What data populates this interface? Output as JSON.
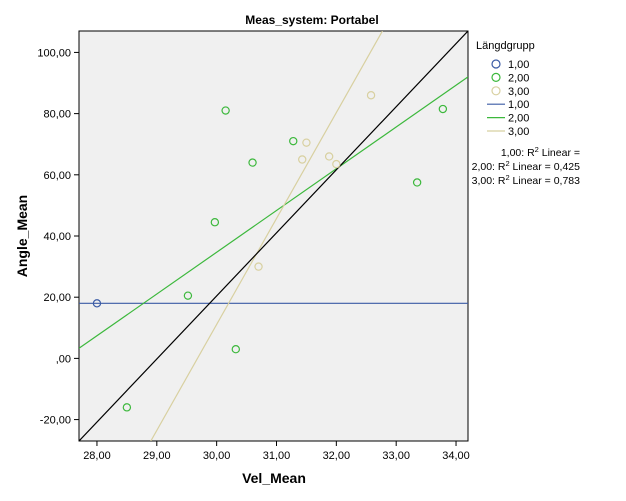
{
  "chart_data": {
    "type": "scatter",
    "title": "Meas_system: Portabel",
    "xlabel": "Vel_Mean",
    "ylabel": "Angle_Mean",
    "xlim": [
      27.7,
      34.2
    ],
    "ylim": [
      -27,
      107
    ],
    "x_ticks": [
      "28,00",
      "29,00",
      "30,00",
      "31,00",
      "32,00",
      "33,00",
      "34,00"
    ],
    "x_tick_values": [
      28,
      29,
      30,
      31,
      32,
      33,
      34
    ],
    "y_ticks": [
      "-20,00",
      ",00",
      "20,00",
      "40,00",
      "60,00",
      "80,00",
      "100,00"
    ],
    "y_tick_values": [
      -20,
      0,
      20,
      40,
      60,
      80,
      100
    ],
    "grid": false,
    "background": "#f0f0f0",
    "legend": {
      "title": "Längdgrupp",
      "position": "right",
      "entries": [
        {
          "label": "1,00",
          "kind": "marker",
          "color": "#3b5ba5"
        },
        {
          "label": "2,00",
          "kind": "marker",
          "color": "#3cb83c"
        },
        {
          "label": "3,00",
          "kind": "marker",
          "color": "#d8d0a0"
        },
        {
          "label": "1,00",
          "kind": "line",
          "color": "#3b5ba5"
        },
        {
          "label": "2,00",
          "kind": "line",
          "color": "#3cb83c"
        },
        {
          "label": "3,00",
          "kind": "line",
          "color": "#d8d0a0"
        }
      ]
    },
    "r2_annotations": [
      {
        "prefix": "1,00: R",
        "suffix": " Linear =",
        "value": ""
      },
      {
        "prefix": "2,00: R",
        "suffix": " Linear = 0,425",
        "value": "0,425"
      },
      {
        "prefix": "3,00: R",
        "suffix": " Linear = 0,783",
        "value": "0,783"
      }
    ],
    "series": [
      {
        "name": "1,00",
        "color": "#3b5ba5",
        "points": [
          {
            "x": 28.0,
            "y": 18.0
          }
        ],
        "fit_line": {
          "x": [
            27.7,
            34.2
          ],
          "y": [
            18.0,
            18.0
          ]
        }
      },
      {
        "name": "2,00",
        "color": "#3cb83c",
        "points": [
          {
            "x": 28.5,
            "y": -16.0
          },
          {
            "x": 29.52,
            "y": 20.5
          },
          {
            "x": 29.97,
            "y": 44.5
          },
          {
            "x": 30.15,
            "y": 81.0
          },
          {
            "x": 30.32,
            "y": 3.0
          },
          {
            "x": 30.6,
            "y": 64.0
          },
          {
            "x": 31.28,
            "y": 71.0
          },
          {
            "x": 33.35,
            "y": 57.5
          },
          {
            "x": 33.78,
            "y": 81.5
          }
        ],
        "fit_line": {
          "x": [
            27.7,
            34.2
          ],
          "y": [
            3.3,
            92.0
          ]
        }
      },
      {
        "name": "3,00",
        "color": "#d8d0a0",
        "points": [
          {
            "x": 30.7,
            "y": 30.0
          },
          {
            "x": 31.43,
            "y": 65.0
          },
          {
            "x": 31.5,
            "y": 70.5
          },
          {
            "x": 31.88,
            "y": 66.0
          },
          {
            "x": 32.0,
            "y": 63.5
          },
          {
            "x": 32.58,
            "y": 86.0
          }
        ],
        "fit_line": {
          "x": [
            28.9,
            32.77
          ],
          "y": [
            -27.0,
            107.0
          ]
        }
      }
    ],
    "reference_line": {
      "x": [
        27.7,
        34.2
      ],
      "y": [
        -27.0,
        107.0
      ],
      "color": "#000000"
    }
  }
}
